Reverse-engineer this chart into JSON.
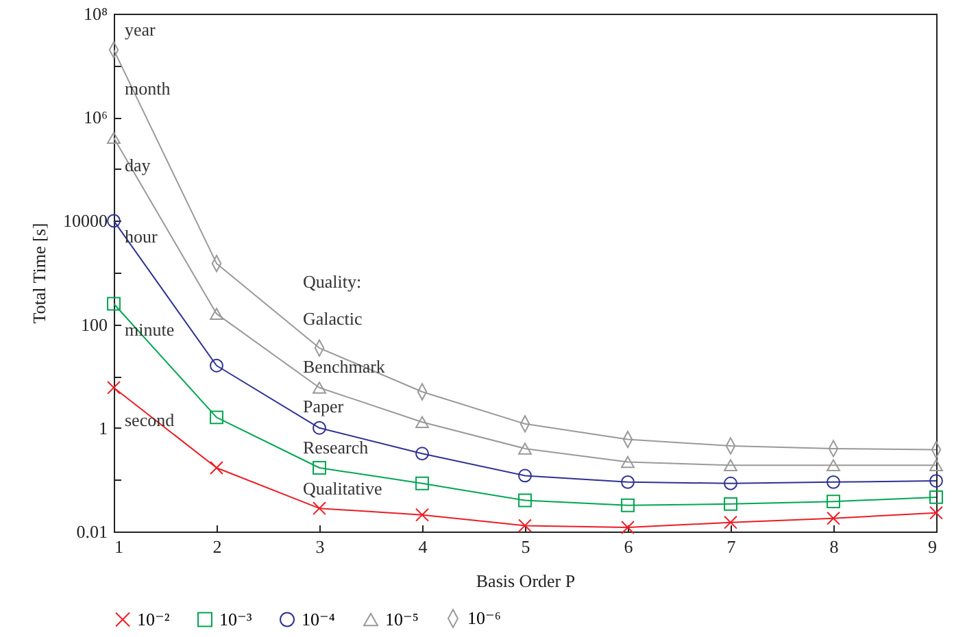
{
  "chart_data": {
    "type": "line",
    "xlabel": "Basis Order P",
    "ylabel": "Total Time [s]",
    "x": [
      1,
      2,
      3,
      4,
      5,
      6,
      7,
      8,
      9
    ],
    "xlim": [
      1,
      9
    ],
    "xticks": [
      1,
      2,
      3,
      4,
      5,
      6,
      7,
      8,
      9
    ],
    "log": true,
    "ylim": [
      0.01,
      100000000
    ],
    "yticks": [
      0.01,
      {
        "value": 0.1,
        "label": null
      },
      1,
      {
        "value": 10,
        "label": null
      },
      100,
      {
        "value": 1000,
        "label": null
      },
      10000,
      {
        "value": 100000,
        "label": null
      },
      {
        "value": 1000000,
        "label": "10⁶"
      },
      {
        "value": 10000000,
        "label": null
      },
      {
        "value": 100000000,
        "label": "10⁸"
      }
    ],
    "grid": false,
    "legend": "bottom",
    "line_style": "solid",
    "series": [
      {
        "name": "10⁻²",
        "color": "#ed1c24",
        "marker": "cross",
        "values": [
          6,
          0.17,
          0.028,
          0.021,
          0.013,
          0.012,
          0.015,
          0.018,
          0.023
        ]
      },
      {
        "name": "10⁻³",
        "color": "#00a651",
        "marker": "square",
        "values": [
          250,
          1.6,
          0.17,
          0.085,
          0.04,
          0.032,
          0.034,
          0.038,
          0.046
        ]
      },
      {
        "name": "10⁻⁴",
        "color": "#2e3192",
        "marker": "circle",
        "values": [
          10000,
          16,
          1,
          0.32,
          0.12,
          0.09,
          0.085,
          0.09,
          0.095
        ]
      },
      {
        "name": "10⁻⁵",
        "color": "#999999",
        "marker": "triangle",
        "values": [
          400000,
          160,
          6,
          1.3,
          0.4,
          0.22,
          0.19,
          0.19,
          0.19
        ]
      },
      {
        "name": "10⁻⁶",
        "color": "#999999",
        "marker": "diamond",
        "values": [
          20000000,
          1500,
          35,
          5,
          1.2,
          0.6,
          0.45,
          0.4,
          0.38
        ]
      }
    ],
    "annotations": [
      "year",
      "month",
      "day",
      "hour",
      "minute",
      "second",
      "Quality:",
      "Galactic",
      "Benchmark",
      "Paper",
      "Research",
      "Qualitative"
    ]
  }
}
